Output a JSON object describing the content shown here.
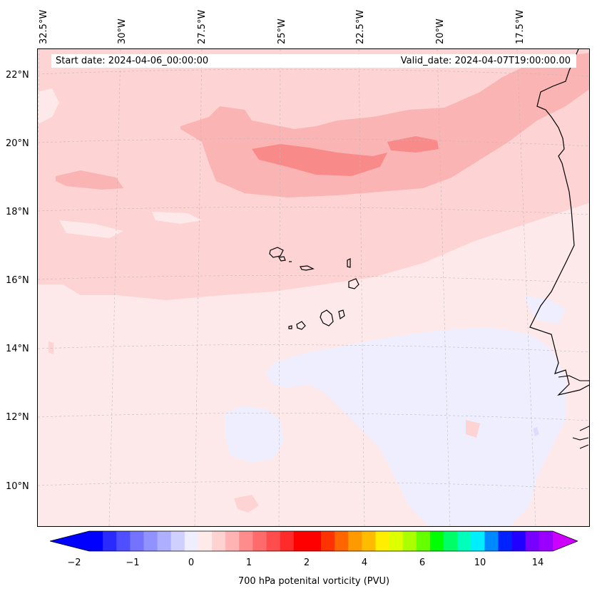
{
  "map": {
    "lon_labels": [
      "32.5°W",
      "30°W",
      "27.5°W",
      "25°W",
      "22.5°W",
      "20°W",
      "17.5°W"
    ],
    "lat_labels": [
      "22°N",
      "20°N",
      "18°N",
      "16°N",
      "14°N",
      "12°N",
      "10°N"
    ],
    "start_date": "Start date: 2024-04-06_00:00:00",
    "valid_date": "Valid_date: 2024-04-07T19:00:00.00",
    "field_colors": {
      "background": "#fee9ea",
      "level_1": "#fdd3d3",
      "level_2": "#fbb4b4",
      "level_3": "#f98a8a",
      "negative": "#eeeefe",
      "negative_2": "#dcdcfe",
      "coastline": "#000000",
      "gridline": "#bbbbbb"
    }
  },
  "colorbar": {
    "label": "700 hPa potenital vorticity (PVU)",
    "ticks": [
      "−2",
      "−1",
      "0",
      "1",
      "2",
      "4",
      "6",
      "10",
      "14"
    ],
    "colors": [
      "#0000ff",
      "#2a2aff",
      "#4f4fff",
      "#7373ff",
      "#9191ff",
      "#afafff",
      "#d0d0ff",
      "#eeeeff",
      "#ffeaea",
      "#ffd2d2",
      "#ffb3b3",
      "#ff8c8c",
      "#ff6b6b",
      "#ff4d4d",
      "#ff2b2b",
      "#ff0000",
      "#ff0000",
      "#ff3300",
      "#ff6600",
      "#ff9900",
      "#ffbb00",
      "#ffee00",
      "#ddff00",
      "#aaff00",
      "#66ff00",
      "#00ff00",
      "#00ff66",
      "#00ffbb",
      "#00eeff",
      "#0088ff",
      "#0022ff",
      "#2200ff",
      "#7700ff",
      "#9900ff"
    ],
    "extend_low_color": "#0000ff",
    "extend_high_color": "#cc00ff"
  }
}
